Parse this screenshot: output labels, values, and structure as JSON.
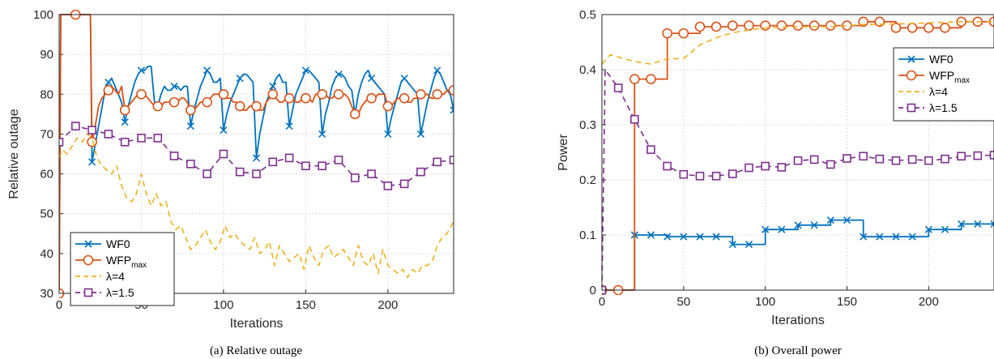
{
  "chart_data": [
    {
      "type": "line",
      "title": "",
      "caption": "(a)  Relative outage",
      "xlabel": "Iterations",
      "ylabel": "Relative outage",
      "xlim": [
        0,
        240
      ],
      "ylim": [
        30,
        100
      ],
      "xticks": [
        0,
        50,
        100,
        150,
        200
      ],
      "yticks": [
        30,
        40,
        50,
        60,
        70,
        80,
        90,
        100
      ],
      "grid": true,
      "legend_position": "bottom-left",
      "series": [
        {
          "name": "WF0",
          "color": "#0072BD",
          "style": "solid",
          "marker": "x",
          "x": [
            0,
            1,
            10,
            19,
            20,
            24,
            28,
            30,
            32,
            34,
            36,
            38,
            40,
            42,
            44,
            46,
            48,
            50,
            52,
            54,
            56,
            58,
            60,
            62,
            64,
            66,
            68,
            70,
            72,
            74,
            76,
            78,
            80,
            82,
            84,
            86,
            88,
            90,
            92,
            94,
            96,
            98,
            100,
            102,
            104,
            106,
            108,
            110,
            112,
            114,
            116,
            118,
            120,
            122,
            124,
            126,
            128,
            130,
            132,
            134,
            136,
            138,
            140,
            142,
            144,
            146,
            148,
            150,
            152,
            154,
            156,
            158,
            160,
            162,
            164,
            166,
            168,
            170,
            172,
            174,
            176,
            178,
            180,
            182,
            184,
            186,
            188,
            190,
            192,
            194,
            196,
            198,
            200,
            202,
            204,
            206,
            208,
            210,
            212,
            214,
            216,
            218,
            220,
            222,
            224,
            226,
            228,
            230,
            232,
            234,
            236,
            238,
            240
          ],
          "values": [
            30,
            100,
            100,
            100,
            63,
            72,
            81,
            83,
            84,
            82,
            80,
            78,
            73,
            77,
            80,
            83,
            85,
            86,
            86,
            87,
            87,
            78,
            77,
            80,
            82,
            81,
            81,
            82,
            82,
            81,
            82,
            82,
            72,
            76,
            79,
            82,
            84,
            86,
            85,
            83,
            83,
            84,
            71,
            75,
            78,
            80,
            82,
            84,
            85,
            85,
            84,
            83,
            64,
            70,
            74,
            78,
            80,
            82,
            84,
            85,
            83,
            83,
            72,
            76,
            80,
            82,
            84,
            86,
            86,
            85,
            84,
            83,
            70,
            75,
            78,
            82,
            84,
            85,
            85,
            84,
            82,
            81,
            75,
            80,
            83,
            85,
            86,
            84,
            83,
            82,
            81,
            80,
            70,
            74,
            77,
            80,
            83,
            84,
            83,
            82,
            81,
            80,
            70,
            74,
            78,
            81,
            84,
            86,
            85,
            83,
            81,
            80,
            76
          ]
        },
        {
          "name": "WFP",
          "name_sub": "max",
          "color": "#D95319",
          "style": "solid",
          "marker": "o",
          "x": [
            0,
            1,
            10,
            19,
            20,
            22,
            24,
            26,
            28,
            30,
            32,
            34,
            36,
            38,
            40,
            42,
            44,
            46,
            48,
            50,
            52,
            54,
            56,
            58,
            60,
            62,
            64,
            66,
            68,
            70,
            72,
            74,
            76,
            78,
            80,
            82,
            84,
            86,
            88,
            90,
            92,
            94,
            96,
            98,
            100,
            102,
            104,
            106,
            108,
            110,
            112,
            114,
            116,
            118,
            120,
            122,
            124,
            126,
            128,
            130,
            132,
            134,
            136,
            138,
            140,
            142,
            144,
            146,
            148,
            150,
            152,
            154,
            156,
            158,
            160,
            162,
            164,
            166,
            168,
            170,
            172,
            174,
            176,
            178,
            180,
            182,
            184,
            186,
            188,
            190,
            192,
            194,
            196,
            198,
            200,
            202,
            204,
            206,
            208,
            210,
            212,
            214,
            216,
            218,
            220,
            222,
            224,
            226,
            228,
            230,
            232,
            234,
            236,
            238,
            240
          ],
          "values": [
            30,
            100,
            100,
            100,
            68,
            72,
            77,
            79,
            80,
            81,
            82,
            81,
            80,
            82,
            76,
            77,
            78,
            79,
            80,
            80,
            80,
            79,
            78,
            77,
            77,
            77,
            78,
            78,
            78,
            78,
            78,
            79,
            79,
            78,
            76,
            76,
            77,
            78,
            78,
            78,
            79,
            80,
            80,
            80,
            80,
            79,
            79,
            78,
            78,
            77,
            76,
            76,
            77,
            77,
            77,
            76,
            76,
            78,
            79,
            80,
            79,
            78,
            78,
            79,
            79,
            79,
            78,
            78,
            79,
            79,
            79,
            78,
            80,
            80,
            80,
            80,
            79,
            79,
            80,
            80,
            80,
            80,
            79,
            77,
            75,
            75,
            77,
            78,
            79,
            79,
            79,
            80,
            80,
            80,
            77,
            77,
            78,
            79,
            79,
            79,
            78,
            78,
            79,
            79,
            80,
            80,
            80,
            79,
            79,
            80,
            80,
            80,
            81,
            81,
            81
          ]
        },
        {
          "name": "λ=4",
          "color": "#EDB120",
          "style": "dashed",
          "marker": "none",
          "x": [
            0,
            2,
            5,
            8,
            11,
            14,
            17,
            20,
            23,
            26,
            29,
            32,
            35,
            38,
            41,
            44,
            47,
            50,
            53,
            56,
            59,
            62,
            65,
            68,
            71,
            74,
            77,
            80,
            83,
            86,
            89,
            92,
            95,
            98,
            101,
            104,
            107,
            110,
            113,
            116,
            119,
            122,
            125,
            128,
            131,
            134,
            137,
            140,
            143,
            146,
            149,
            152,
            155,
            158,
            161,
            164,
            167,
            170,
            173,
            176,
            179,
            182,
            185,
            188,
            191,
            194,
            197,
            200,
            203,
            206,
            209,
            212,
            215,
            218,
            221,
            224,
            227,
            230,
            233,
            236,
            240
          ],
          "values": [
            64,
            66,
            65,
            67,
            69,
            68,
            70,
            69,
            64,
            62,
            61,
            60,
            62,
            57,
            54,
            53,
            55,
            60,
            55,
            52,
            55,
            52,
            53,
            48,
            46,
            47,
            44,
            41,
            42,
            44,
            46,
            43,
            41,
            43,
            47,
            44,
            45,
            43,
            42,
            41,
            44,
            40,
            41,
            43,
            37,
            42,
            40,
            38,
            39,
            40,
            36,
            42,
            39,
            37,
            41,
            42,
            39,
            40,
            41,
            39,
            37,
            42,
            38,
            37,
            40,
            35,
            41,
            37,
            36,
            35,
            36,
            34,
            36,
            35,
            37,
            37,
            38,
            42,
            44,
            45,
            48
          ]
        },
        {
          "name": "λ=1.5",
          "color": "#7E2F8E",
          "style": "dashed",
          "marker": "s",
          "x": [
            0,
            10,
            20,
            30,
            40,
            50,
            60,
            70,
            80,
            90,
            100,
            110,
            120,
            130,
            140,
            150,
            160,
            170,
            180,
            190,
            200,
            210,
            220,
            230,
            240
          ],
          "values": [
            68,
            72,
            71,
            70,
            68,
            69,
            69,
            64.5,
            62.5,
            60,
            65,
            60.5,
            60,
            63,
            64,
            62,
            62,
            63.5,
            59,
            60,
            57,
            57.5,
            60.5,
            63,
            63.5
          ]
        }
      ]
    },
    {
      "type": "line",
      "title": "",
      "caption": "(b)  Overall power",
      "xlabel": "Iterations",
      "ylabel": "Power",
      "xlim": [
        0,
        240
      ],
      "ylim": [
        0,
        0.5
      ],
      "xticks": [
        0,
        50,
        100,
        150,
        200
      ],
      "yticks": [
        0,
        0.1,
        0.2,
        0.3,
        0.4,
        0.5
      ],
      "grid": true,
      "legend_position": "top-right",
      "series": [
        {
          "name": "WF0",
          "color": "#0072BD",
          "style": "solid",
          "marker": "x",
          "x": [
            0,
            10,
            20,
            20,
            40,
            40,
            80,
            80,
            100,
            100,
            120,
            120,
            140,
            140,
            160,
            160,
            200,
            200,
            220,
            220,
            240
          ],
          "values": [
            0,
            0,
            0,
            0.1,
            0.1,
            0.097,
            0.097,
            0.083,
            0.083,
            0.11,
            0.11,
            0.118,
            0.118,
            0.127,
            0.127,
            0.097,
            0.097,
            0.11,
            0.11,
            0.12,
            0.12
          ]
        },
        {
          "name": "WFP",
          "name_sub": "max",
          "color": "#D95319",
          "style": "solid",
          "marker": "o",
          "x": [
            0,
            10,
            20,
            20,
            40,
            40,
            60,
            60,
            80,
            80,
            120,
            120,
            160,
            160,
            180,
            180,
            220,
            220,
            240
          ],
          "values": [
            0,
            0,
            0,
            0.383,
            0.383,
            0.466,
            0.466,
            0.478,
            0.478,
            0.48,
            0.48,
            0.48,
            0.48,
            0.487,
            0.487,
            0.476,
            0.476,
            0.487,
            0.487
          ]
        },
        {
          "name": "λ=4",
          "color": "#EDB120",
          "style": "dashed",
          "marker": "none",
          "x": [
            0,
            5,
            10,
            20,
            30,
            40,
            50,
            60,
            70,
            80,
            90,
            100,
            120,
            140,
            160,
            180,
            200,
            220,
            240
          ],
          "values": [
            0.41,
            0.427,
            0.423,
            0.415,
            0.41,
            0.42,
            0.42,
            0.445,
            0.458,
            0.467,
            0.472,
            0.476,
            0.478,
            0.478,
            0.482,
            0.483,
            0.485,
            0.487,
            0.487
          ]
        },
        {
          "name": "λ=1.5",
          "color": "#7E2F8E",
          "style": "dashed",
          "marker": "s",
          "x": [
            0,
            2,
            10,
            20,
            30,
            40,
            50,
            60,
            70,
            80,
            90,
            100,
            110,
            120,
            130,
            140,
            150,
            160,
            170,
            180,
            190,
            200,
            210,
            220,
            230,
            240
          ],
          "values": [
            0.0,
            0.4,
            0.367,
            0.31,
            0.255,
            0.225,
            0.21,
            0.207,
            0.207,
            0.211,
            0.222,
            0.225,
            0.223,
            0.235,
            0.237,
            0.228,
            0.239,
            0.243,
            0.238,
            0.235,
            0.237,
            0.235,
            0.238,
            0.243,
            0.244,
            0.245
          ]
        }
      ]
    }
  ]
}
